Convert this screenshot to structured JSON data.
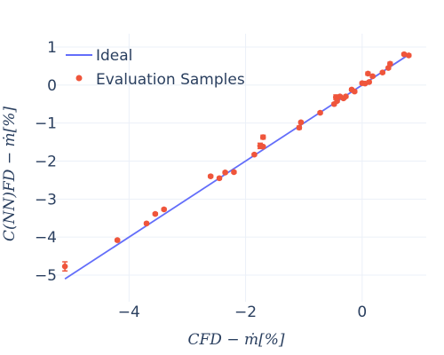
{
  "chart_data": {
    "type": "scatter",
    "xlabel": "CFD − ṁ[%]",
    "ylabel": "C(NN)FD − ṁ[%]",
    "xlim": [
      -5.3,
      1.1
    ],
    "ylim": [
      -5.7,
      1.35
    ],
    "x_ticks": [
      -4,
      -2,
      0
    ],
    "x_tick_labels": [
      "−4",
      "−2",
      "0"
    ],
    "y_ticks": [
      -5,
      -4,
      -3,
      -2,
      -1,
      0,
      1
    ],
    "y_tick_labels": [
      "−5",
      "−4",
      "−3",
      "−2",
      "−1",
      "0",
      "1"
    ],
    "grid": true,
    "legend_position": "top-left",
    "series": [
      {
        "name": "Ideal",
        "kind": "line",
        "color": "#636efa",
        "x": [
          -5.1,
          0.8
        ],
        "y": [
          -5.1,
          0.8
        ]
      },
      {
        "name": "Evaluation Samples",
        "kind": "markers",
        "color": "#ef553b",
        "points": [
          {
            "x": -5.1,
            "y": -4.77,
            "err": 0.12
          },
          {
            "x": -4.2,
            "y": -4.08,
            "err": 0.03
          },
          {
            "x": -3.7,
            "y": -3.64,
            "err": 0.03
          },
          {
            "x": -3.55,
            "y": -3.39,
            "err": 0.03
          },
          {
            "x": -3.4,
            "y": -3.27,
            "err": 0.03
          },
          {
            "x": -2.6,
            "y": -2.4,
            "err": 0.03
          },
          {
            "x": -2.45,
            "y": -2.45,
            "err": 0.03
          },
          {
            "x": -2.35,
            "y": -2.3,
            "err": 0.03
          },
          {
            "x": -2.2,
            "y": -2.29,
            "err": 0.03
          },
          {
            "x": -1.85,
            "y": -1.83,
            "err": 0.03
          },
          {
            "x": -1.75,
            "y": -1.6,
            "err": 0.07
          },
          {
            "x": -1.7,
            "y": -1.37,
            "err": 0.05
          },
          {
            "x": -1.7,
            "y": -1.62,
            "err": 0.03
          },
          {
            "x": -1.08,
            "y": -1.12,
            "err": 0.04
          },
          {
            "x": -1.05,
            "y": -0.98,
            "err": 0.03
          },
          {
            "x": -0.72,
            "y": -0.73,
            "err": 0.03
          },
          {
            "x": -0.48,
            "y": -0.5,
            "err": 0.03
          },
          {
            "x": -0.45,
            "y": -0.32,
            "err": 0.06
          },
          {
            "x": -0.43,
            "y": -0.42,
            "err": 0.03
          },
          {
            "x": -0.38,
            "y": -0.3,
            "err": 0.03
          },
          {
            "x": -0.32,
            "y": -0.35,
            "err": 0.03
          },
          {
            "x": -0.28,
            "y": -0.3,
            "err": 0.03
          },
          {
            "x": -0.18,
            "y": -0.12,
            "err": 0.03
          },
          {
            "x": -0.13,
            "y": -0.17,
            "err": 0.03
          },
          {
            "x": 0.0,
            "y": 0.05,
            "err": 0.03
          },
          {
            "x": 0.05,
            "y": 0.04,
            "err": 0.03
          },
          {
            "x": 0.1,
            "y": 0.3,
            "err": 0.04
          },
          {
            "x": 0.12,
            "y": 0.08,
            "err": 0.03
          },
          {
            "x": 0.18,
            "y": 0.23,
            "err": 0.03
          },
          {
            "x": 0.35,
            "y": 0.33,
            "err": 0.03
          },
          {
            "x": 0.45,
            "y": 0.45,
            "err": 0.03
          },
          {
            "x": 0.48,
            "y": 0.56,
            "err": 0.04
          },
          {
            "x": 0.72,
            "y": 0.81,
            "err": 0.03
          },
          {
            "x": 0.8,
            "y": 0.78,
            "err": 0.03
          }
        ]
      }
    ]
  }
}
